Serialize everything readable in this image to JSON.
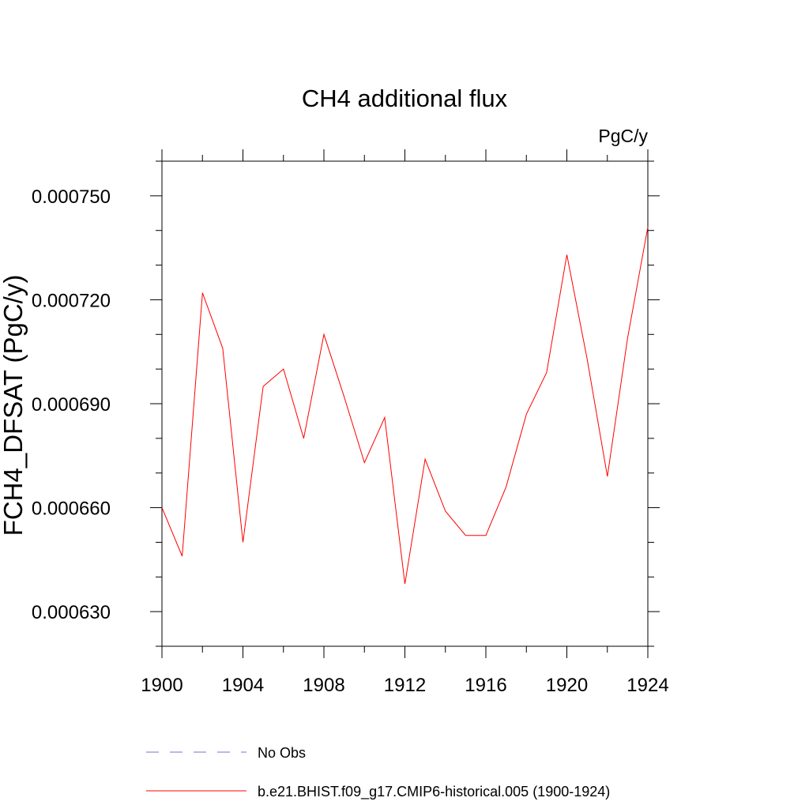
{
  "chart_data": {
    "type": "line",
    "title": "CH4 additional flux",
    "units": "PgC/y",
    "xlabel": "",
    "ylabel": "FCH4_DFSAT  (PgC/y)",
    "xlim": [
      1900,
      1924
    ],
    "ylim": [
      0.00062,
      0.00076
    ],
    "x_ticks": [
      1900,
      1904,
      1908,
      1912,
      1916,
      1920,
      1924
    ],
    "x_tick_labels": [
      "1900",
      "1904",
      "1908",
      "1912",
      "1916",
      "1920",
      "1924"
    ],
    "y_ticks": [
      0.00063,
      0.00066,
      0.00069,
      0.00072,
      0.00075
    ],
    "y_tick_labels": [
      "0.000630",
      "0.000660",
      "0.000690",
      "0.000720",
      "0.000750"
    ],
    "y_minor_step": 1e-05,
    "x_minor_step": 2,
    "grid": false,
    "legend_position": "bottom",
    "series": [
      {
        "name": "b.e21.BHIST.f09_g17.CMIP6-historical.005 (1900-1924)",
        "color": "#ff0000",
        "style": "solid",
        "x": [
          1900,
          1901,
          1902,
          1903,
          1904,
          1905,
          1906,
          1907,
          1908,
          1909,
          1910,
          1911,
          1912,
          1913,
          1914,
          1915,
          1916,
          1917,
          1918,
          1919,
          1920,
          1921,
          1922,
          1923,
          1924
        ],
        "values": [
          0.00066,
          0.000646,
          0.000722,
          0.000706,
          0.00065,
          0.000695,
          0.0007,
          0.00068,
          0.00071,
          0.000692,
          0.000673,
          0.000686,
          0.000638,
          0.000674,
          0.000659,
          0.000652,
          0.000652,
          0.000666,
          0.000687,
          0.000699,
          0.000733,
          0.000703,
          0.000669,
          0.000709,
          0.000741
        ]
      }
    ],
    "legend": [
      {
        "label": "No Obs",
        "color": "#7b6fd0",
        "style": "dashed"
      },
      {
        "label": "b.e21.BHIST.f09_g17.CMIP6-historical.005 (1900-1924)",
        "color": "#ff0000",
        "style": "solid"
      }
    ]
  }
}
